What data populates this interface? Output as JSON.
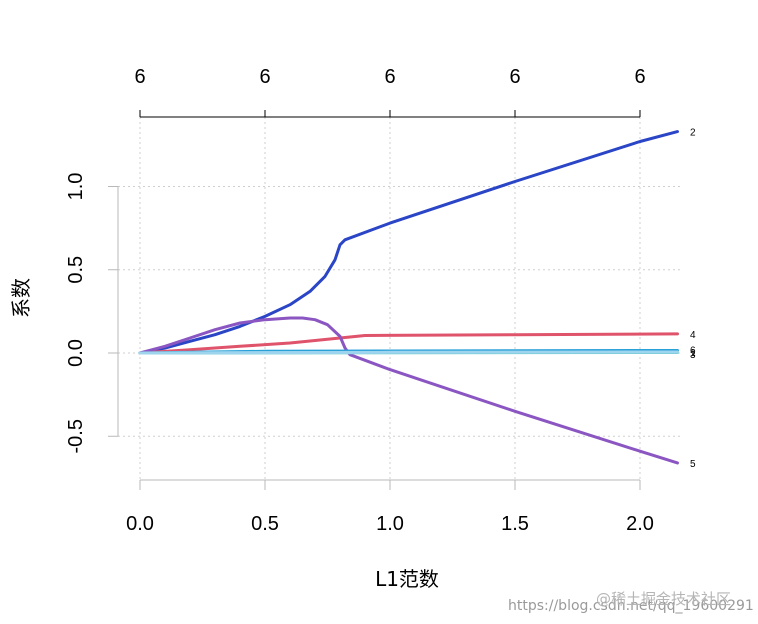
{
  "chart_data": {
    "type": "line",
    "xlabel": "L1范数",
    "ylabel": "系数",
    "xlim": [
      -0.02,
      2.2
    ],
    "ylim": [
      -0.75,
      1.4
    ],
    "x_ticks": [
      "0.0",
      "0.5",
      "1.0",
      "1.5",
      "2.0"
    ],
    "y_ticks": [
      "-0.5",
      "0.0",
      "0.5",
      "1.0"
    ],
    "top_ticks": [
      "6",
      "6",
      "6",
      "6",
      "6"
    ],
    "grid": true,
    "series": [
      {
        "name": "2",
        "color": "#2a45c6",
        "points": [
          [
            0,
            0
          ],
          [
            0.1,
            0.03
          ],
          [
            0.2,
            0.07
          ],
          [
            0.3,
            0.11
          ],
          [
            0.4,
            0.16
          ],
          [
            0.5,
            0.22
          ],
          [
            0.6,
            0.29
          ],
          [
            0.68,
            0.37
          ],
          [
            0.74,
            0.46
          ],
          [
            0.78,
            0.56
          ],
          [
            0.8,
            0.65
          ],
          [
            0.82,
            0.68
          ],
          [
            1.0,
            0.78
          ],
          [
            1.5,
            1.03
          ],
          [
            2.0,
            1.27
          ],
          [
            2.15,
            1.33
          ]
        ]
      },
      {
        "name": "4",
        "color": "#df536b",
        "points": [
          [
            0,
            0
          ],
          [
            0.2,
            0.02
          ],
          [
            0.4,
            0.04
          ],
          [
            0.6,
            0.06
          ],
          [
            0.8,
            0.09
          ],
          [
            0.9,
            0.105
          ],
          [
            1.5,
            0.11
          ],
          [
            2.15,
            0.115
          ]
        ]
      },
      {
        "name": "5",
        "color": "#8b56c2",
        "points": [
          [
            0,
            0
          ],
          [
            0.1,
            0.04
          ],
          [
            0.2,
            0.09
          ],
          [
            0.3,
            0.14
          ],
          [
            0.4,
            0.18
          ],
          [
            0.5,
            0.2
          ],
          [
            0.6,
            0.21
          ],
          [
            0.65,
            0.21
          ],
          [
            0.7,
            0.2
          ],
          [
            0.75,
            0.17
          ],
          [
            0.8,
            0.1
          ],
          [
            0.82,
            0.03
          ],
          [
            0.84,
            -0.01
          ],
          [
            1.0,
            -0.1
          ],
          [
            1.5,
            -0.35
          ],
          [
            2.0,
            -0.59
          ],
          [
            2.15,
            -0.66
          ]
        ]
      },
      {
        "name": "6",
        "color": "#28a0d8",
        "points": [
          [
            0,
            0
          ],
          [
            0.5,
            0.01
          ],
          [
            1.0,
            0.012
          ],
          [
            1.5,
            0.014
          ],
          [
            2.15,
            0.015
          ]
        ]
      },
      {
        "name": "1",
        "color": "#5ec8c8",
        "points": [
          [
            0,
            0
          ],
          [
            1.0,
            0.002
          ],
          [
            2.15,
            0.003
          ]
        ]
      },
      {
        "name": "3",
        "color": "#9fd4ee",
        "points": [
          [
            0,
            0
          ],
          [
            1.0,
            0.004
          ],
          [
            2.15,
            0.006
          ]
        ]
      }
    ],
    "end_labels": [
      {
        "text": "2",
        "y": 1.33
      },
      {
        "text": "4",
        "y": 0.115
      },
      {
        "text": "6",
        "y": 0.02
      },
      {
        "text": "1",
        "y": 0.005
      },
      {
        "text": "3",
        "y": -0.005
      },
      {
        "text": "5",
        "y": -0.66
      }
    ]
  },
  "watermark": {
    "url": "https://blog.csdn.net/qq_19600291",
    "brand": "@稀土掘金技术社区"
  }
}
